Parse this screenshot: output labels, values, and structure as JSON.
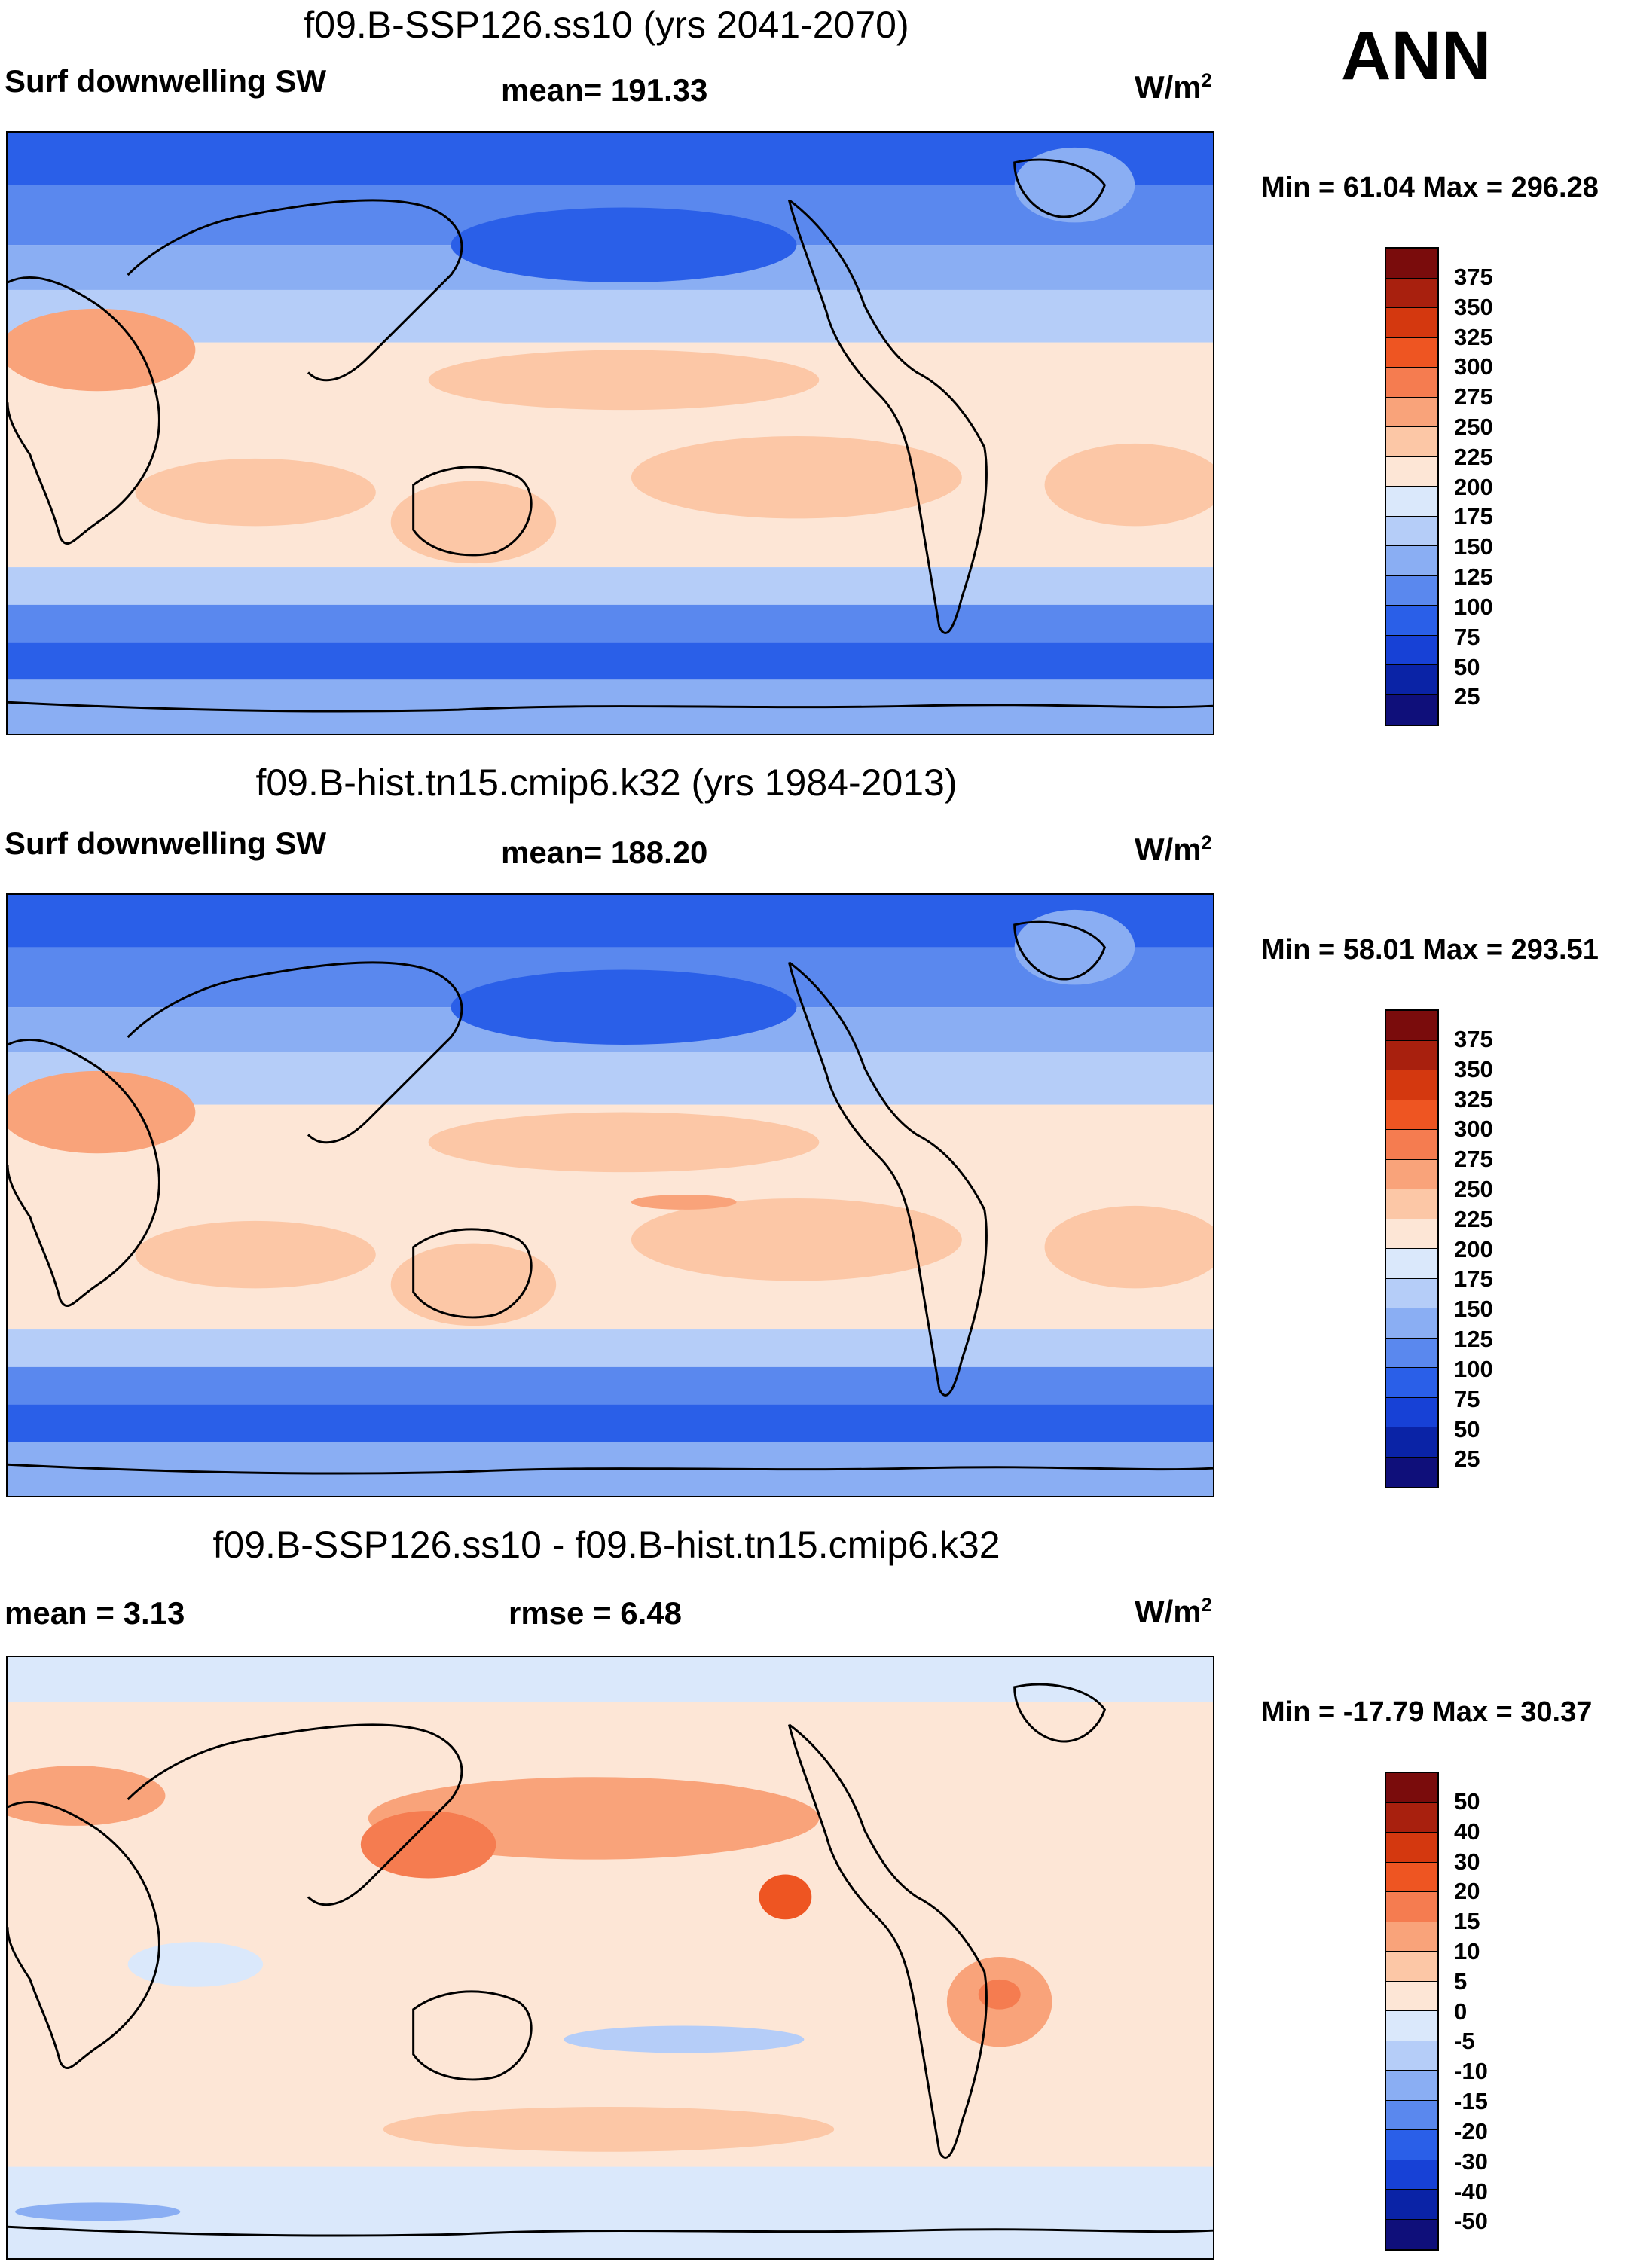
{
  "season": "ANN",
  "units_main": "W/m",
  "units_sup": "2",
  "colors": {
    "abs_scale": [
      "#0f0f7a",
      "#0a23a6",
      "#1741d6",
      "#2a5fe8",
      "#5a88ee",
      "#8aaef3",
      "#b5cdf8",
      "#dae8fb",
      "#fde6d6",
      "#fcc7a6",
      "#f9a37a",
      "#f57c50",
      "#ee5522",
      "#d4380f",
      "#a8200e",
      "#7a0c0c"
    ],
    "diff_scale": [
      "#0f0f7a",
      "#0a23a6",
      "#1741d6",
      "#2a5fe8",
      "#5a88ee",
      "#8aaef3",
      "#b5cdf8",
      "#dae8fb",
      "#fde6d6",
      "#fcc7a6",
      "#f9a37a",
      "#f57c50",
      "#ee5522",
      "#d4380f",
      "#a8200e",
      "#7a0c0c"
    ]
  },
  "panels": [
    {
      "title": "f09.B-SSP126.ss10 (yrs 2041-2070)",
      "left_label": "Surf downwelling SW",
      "mid_label": "mean= 191.33",
      "minmax": "Min =  61.04 Max = 296.28",
      "colorbar_ticks": [
        "375",
        "350",
        "325",
        "300",
        "275",
        "250",
        "225",
        "200",
        "175",
        "150",
        "125",
        "100",
        "75",
        "50",
        "25"
      ]
    },
    {
      "title": "f09.B-hist.tn15.cmip6.k32 (yrs 1984-2013)",
      "left_label": "Surf downwelling SW",
      "mid_label": "mean= 188.20",
      "minmax": "Min =  58.01 Max = 293.51",
      "colorbar_ticks": [
        "375",
        "350",
        "325",
        "300",
        "275",
        "250",
        "225",
        "200",
        "175",
        "150",
        "125",
        "100",
        "75",
        "50",
        "25"
      ]
    },
    {
      "title": "f09.B-SSP126.ss10 - f09.B-hist.tn15.cmip6.k32",
      "left_label": "mean =   3.13",
      "mid_label": "rmse =   6.48",
      "minmax": "Min = -17.79 Max =  30.37",
      "colorbar_ticks": [
        "50",
        "40",
        "30",
        "20",
        "15",
        "10",
        "5",
        "0",
        "-5",
        "-10",
        "-15",
        "-20",
        "-30",
        "-40",
        "-50"
      ]
    }
  ]
}
